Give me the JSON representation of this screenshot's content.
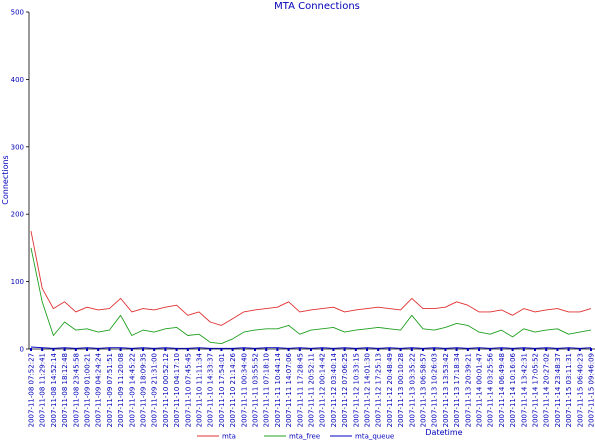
{
  "chart_data": {
    "type": "line",
    "title": "MTA Connections",
    "xlabel": "Datetime",
    "ylabel": "Connections",
    "ylim": [
      0,
      500
    ],
    "y_ticks": [
      0,
      100,
      200,
      300,
      400,
      500
    ],
    "grid": false,
    "legend_position": "bottom",
    "categories": [
      "2007-11-08 07:52:27",
      "2007-11-08 11:29:41",
      "2007-11-08 14:52:14",
      "2007-11-08 18:12:48",
      "2007-11-08 23:45:58",
      "2007-11-09 01:00:21",
      "2007-11-09 04:24:24",
      "2007-11-09 07:51:51",
      "2007-11-09 11:20:08",
      "2007-11-09 14:45:22",
      "2007-11-09 18:09:35",
      "2007-11-09 21:31:00",
      "2007-11-10 00:52:12",
      "2007-11-10 04:17:10",
      "2007-11-10 07:45:45",
      "2007-11-10 11:11:34",
      "2007-11-10 14:33:37",
      "2007-11-10 17:54:01",
      "2007-11-10 21:14:26",
      "2007-11-11 00:34:40",
      "2007-11-11 03:55:52",
      "2007-11-11 07:18:10",
      "2007-11-11 10:44:14",
      "2007-11-11 14:07:06",
      "2007-11-11 17:28:45",
      "2007-11-11 20:52:11",
      "2007-11-12 00:14:42",
      "2007-11-12 03:40:14",
      "2007-11-12 07:06:25",
      "2007-11-12 10:33:15",
      "2007-11-12 14:01:30",
      "2007-11-12 17:25:13",
      "2007-11-12 20:48:49",
      "2007-11-13 00:10:28",
      "2007-11-13 03:35:22",
      "2007-11-13 06:58:57",
      "2007-11-13 10:26:03",
      "2007-11-13 13:53:42",
      "2007-11-13 17:18:34",
      "2007-11-13 20:39:21",
      "2007-11-14 00:01:47",
      "2007-11-14 03:25:56",
      "2007-11-14 06:49:48",
      "2007-11-14 10:16:06",
      "2007-11-14 13:42:31",
      "2007-11-14 17:05:52",
      "2007-11-14 20:27:02",
      "2007-11-14 23:48:37",
      "2007-11-15 03:11:31",
      "2007-11-15 06:40:23",
      "2007-11-15 09:46:09"
    ],
    "series": [
      {
        "name": "mta",
        "color": "#e03030",
        "values": [
          175,
          90,
          60,
          70,
          55,
          62,
          58,
          60,
          75,
          55,
          60,
          58,
          62,
          65,
          50,
          55,
          40,
          35,
          45,
          55,
          58,
          60,
          62,
          70,
          55,
          58,
          60,
          62,
          55,
          58,
          60,
          62,
          60,
          58,
          75,
          60,
          60,
          62,
          70,
          65,
          55,
          55,
          58,
          50,
          60,
          55,
          58,
          60,
          55,
          55,
          60
        ]
      },
      {
        "name": "mta_free",
        "color": "#20a020",
        "values": [
          150,
          70,
          20,
          40,
          28,
          30,
          25,
          28,
          50,
          20,
          28,
          25,
          30,
          32,
          20,
          22,
          10,
          8,
          15,
          25,
          28,
          30,
          30,
          35,
          22,
          28,
          30,
          32,
          25,
          28,
          30,
          32,
          30,
          28,
          50,
          30,
          28,
          32,
          38,
          35,
          25,
          22,
          28,
          18,
          30,
          25,
          28,
          30,
          22,
          25,
          28
        ]
      },
      {
        "name": "mta_queue",
        "color": "#0000c0",
        "values": [
          3,
          2,
          1,
          2,
          1,
          2,
          1,
          2,
          2,
          1,
          2,
          1,
          2,
          1,
          1,
          2,
          1,
          1,
          1,
          2,
          1,
          2,
          2,
          1,
          2,
          1,
          2,
          1,
          2,
          1,
          2,
          1,
          2,
          1,
          2,
          1,
          2,
          1,
          2,
          1,
          2,
          1,
          2,
          1,
          2,
          1,
          2,
          1,
          2,
          1,
          2
        ]
      }
    ]
  }
}
